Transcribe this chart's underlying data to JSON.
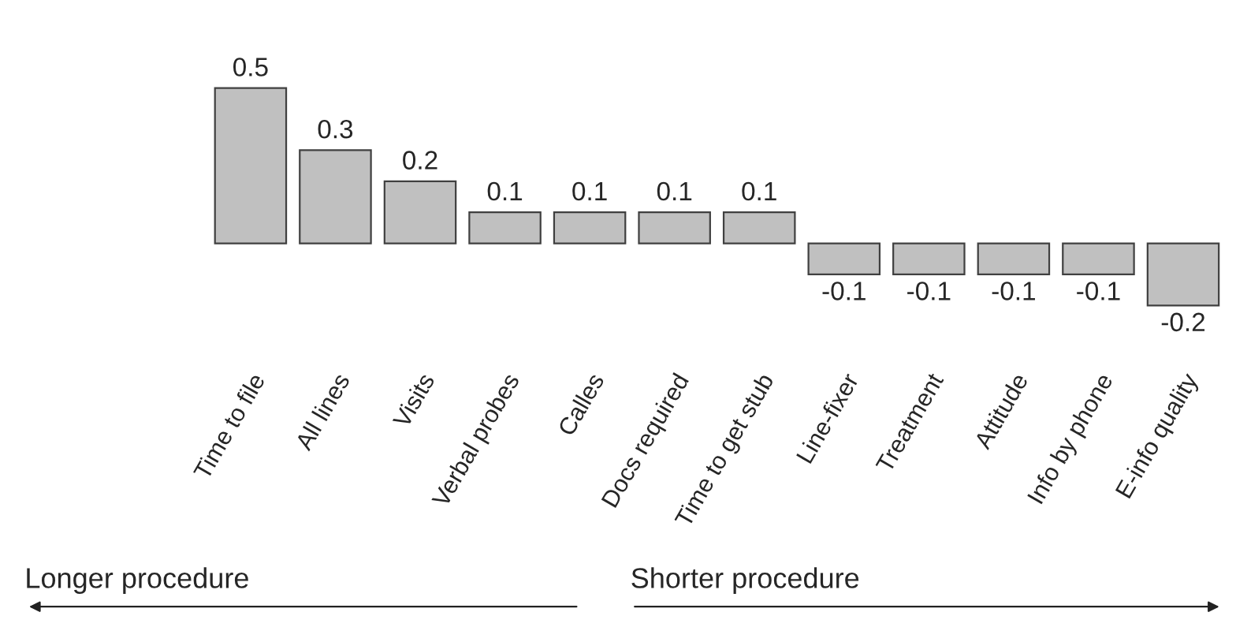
{
  "chart_data": {
    "type": "bar",
    "categories": [
      "Time to file",
      "All lines",
      "Visits",
      "Verbal probes",
      "Calles",
      "Docs required",
      "Time to get stub",
      "Line-fixer",
      "Treatment",
      "Attitude",
      "Info by phone",
      "E-info quality"
    ],
    "values": [
      0.5,
      0.3,
      0.2,
      0.1,
      0.1,
      0.1,
      0.1,
      -0.1,
      -0.1,
      -0.1,
      -0.1,
      -0.2
    ],
    "color": "#c0c0c0",
    "data_labels": true,
    "annotations": [
      "Longer procedure",
      "Shorter procedure"
    ]
  }
}
